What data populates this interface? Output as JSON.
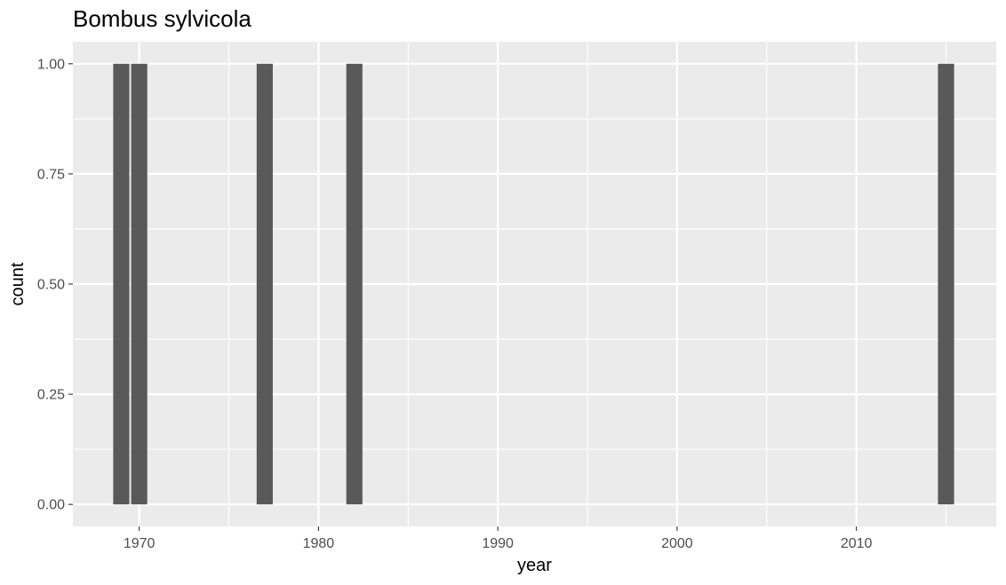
{
  "chart_data": {
    "type": "bar",
    "title": "Bombus sylvicola",
    "xlabel": "year",
    "ylabel": "count",
    "x": [
      1969,
      1970,
      1977,
      1982,
      2015
    ],
    "values": [
      1,
      1,
      1,
      1,
      1
    ],
    "xlim": [
      1966.3,
      2017.8
    ],
    "ylim": [
      -0.05,
      1.05
    ],
    "x_ticks": [
      1970,
      1980,
      1990,
      2000,
      2010
    ],
    "x_tick_labels": [
      "1970",
      "1980",
      "1990",
      "2000",
      "2010"
    ],
    "y_ticks": [
      0,
      0.25,
      0.5,
      0.75,
      1
    ],
    "y_tick_labels": [
      "0.00",
      "0.25",
      "0.50",
      "0.75",
      "1.00"
    ],
    "bar_width": 0.9,
    "grid": true,
    "panel_background": "#EBEBEB",
    "grid_color": "#FFFFFF",
    "bar_color": "#595959"
  }
}
